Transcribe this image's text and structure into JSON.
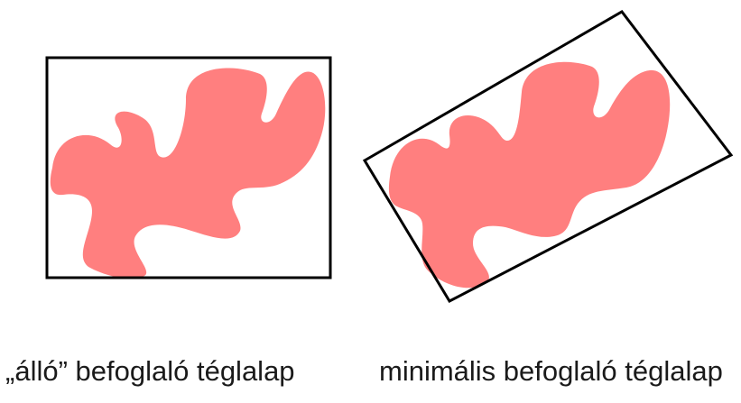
{
  "panels": {
    "left": {
      "caption": "„álló” befoglaló téglalap"
    },
    "right": {
      "caption": "minimális befoglaló téglalap"
    }
  },
  "colors": {
    "blob_fill": "#ff7f7f",
    "rect_stroke": "#000000",
    "text": "#1a1a1a",
    "background": "#ffffff"
  }
}
